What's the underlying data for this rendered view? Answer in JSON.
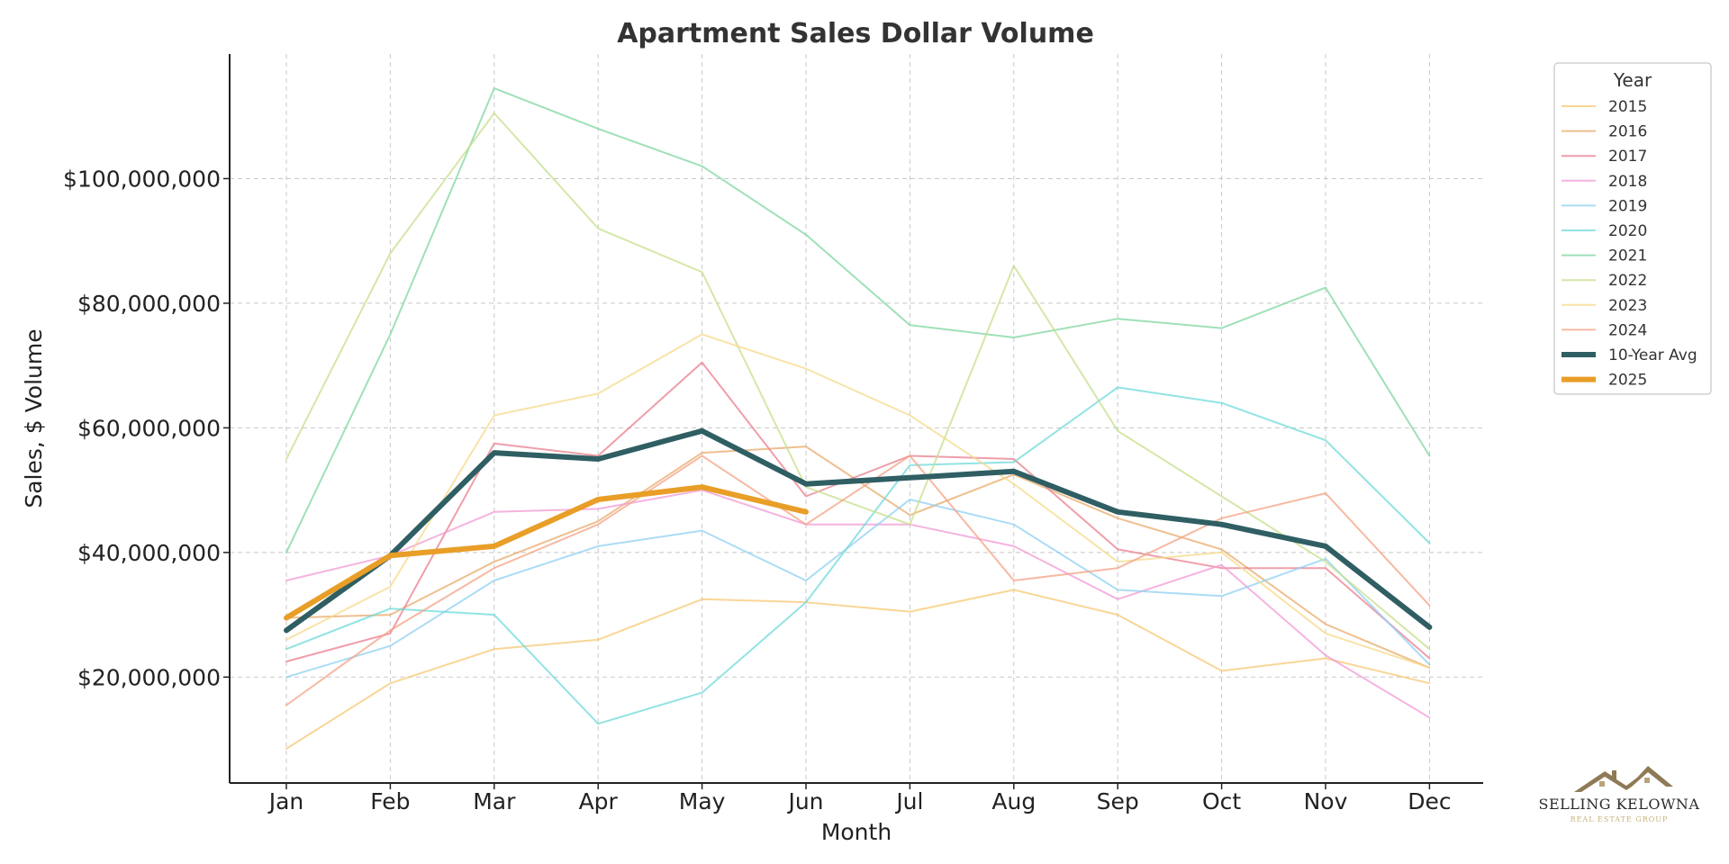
{
  "chart_data": {
    "type": "line",
    "title": "Apartment Sales Dollar Volume",
    "xlabel": "Month",
    "ylabel": "Sales, $ Volume",
    "categories": [
      "Jan",
      "Feb",
      "Mar",
      "Apr",
      "May",
      "Jun",
      "Jul",
      "Aug",
      "Sep",
      "Oct",
      "Nov",
      "Dec"
    ],
    "ylim": [
      3000000,
      120000000
    ],
    "yticks": [
      20000000,
      40000000,
      60000000,
      80000000,
      100000000
    ],
    "ytick_labels": [
      "$20,000,000",
      "$40,000,000",
      "$60,000,000",
      "$80,000,000",
      "$100,000,000"
    ],
    "grid": true,
    "legend_title": "Year",
    "legend_position": "top-right outside",
    "series": [
      {
        "name": "2015",
        "color": "#f7c873",
        "width": 2,
        "opacity": 0.75,
        "values": [
          8500000,
          19000000,
          24500000,
          26000000,
          32500000,
          32000000,
          30500000,
          34000000,
          30000000,
          21000000,
          23000000,
          19000000
        ]
      },
      {
        "name": "2016",
        "color": "#e8a96a",
        "width": 2,
        "opacity": 0.75,
        "values": [
          29500000,
          30000000,
          38500000,
          45000000,
          56000000,
          57000000,
          46000000,
          52500000,
          45500000,
          40500000,
          28500000,
          21500000
        ]
      },
      {
        "name": "2017",
        "color": "#ea7d8d",
        "width": 2,
        "opacity": 0.75,
        "values": [
          22500000,
          27000000,
          57500000,
          55500000,
          70500000,
          49000000,
          55500000,
          55000000,
          40500000,
          37500000,
          37500000,
          23000000
        ]
      },
      {
        "name": "2018",
        "color": "#f29ad4",
        "width": 2,
        "opacity": 0.75,
        "values": [
          35500000,
          39500000,
          46500000,
          47000000,
          50000000,
          44500000,
          44500000,
          41000000,
          32500000,
          38000000,
          23500000,
          13500000
        ]
      },
      {
        "name": "2019",
        "color": "#8fd0f2",
        "width": 2,
        "opacity": 0.75,
        "values": [
          20000000,
          25000000,
          35500000,
          41000000,
          43500000,
          35500000,
          48500000,
          44500000,
          34000000,
          33000000,
          39000000,
          22000000
        ]
      },
      {
        "name": "2020",
        "color": "#6dd9d9",
        "width": 2,
        "opacity": 0.75,
        "values": [
          24500000,
          31000000,
          30000000,
          12500000,
          17500000,
          32000000,
          54000000,
          54500000,
          66500000,
          64000000,
          58000000,
          41500000
        ]
      },
      {
        "name": "2021",
        "color": "#7fd6a0",
        "width": 2,
        "opacity": 0.75,
        "values": [
          40000000,
          75000000,
          114500000,
          108000000,
          102000000,
          91000000,
          76500000,
          74500000,
          77500000,
          76000000,
          82500000,
          55500000
        ]
      },
      {
        "name": "2022",
        "color": "#c6df8b",
        "width": 2,
        "opacity": 0.75,
        "values": [
          55000000,
          88000000,
          110500000,
          92000000,
          85000000,
          50500000,
          44500000,
          86000000,
          59500000,
          49000000,
          38500000,
          24500000
        ]
      },
      {
        "name": "2023",
        "color": "#f6d98a",
        "width": 2,
        "opacity": 0.75,
        "values": [
          26000000,
          34500000,
          62000000,
          65500000,
          75000000,
          69500000,
          62000000,
          51000000,
          38500000,
          40000000,
          27000000,
          21500000
        ]
      },
      {
        "name": "2024",
        "color": "#f4a183",
        "width": 2,
        "opacity": 0.75,
        "values": [
          15500000,
          27500000,
          37500000,
          44500000,
          55500000,
          44500000,
          55500000,
          35500000,
          37500000,
          45500000,
          49500000,
          31500000
        ]
      },
      {
        "name": "10-Year Avg",
        "color": "#2f5e63",
        "width": 6,
        "opacity": 1,
        "values": [
          27500000,
          39500000,
          56000000,
          55000000,
          59500000,
          51000000,
          52000000,
          53000000,
          46500000,
          44500000,
          41000000,
          28000000
        ]
      },
      {
        "name": "2025",
        "color": "#e89e27",
        "width": 6,
        "opacity": 1,
        "values": [
          29500000,
          39500000,
          41000000,
          48500000,
          50500000,
          46500000,
          null,
          null,
          null,
          null,
          null,
          null
        ]
      }
    ]
  },
  "logo": {
    "name": "SELLING KELOWNA",
    "tagline": "REAL ESTATE GROUP"
  }
}
